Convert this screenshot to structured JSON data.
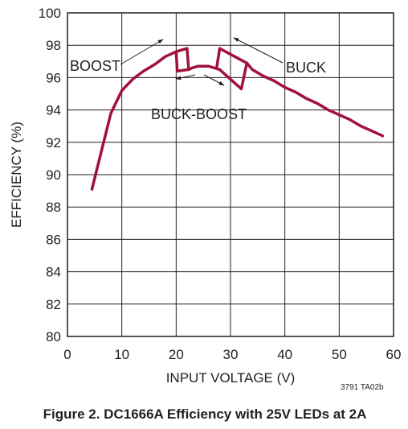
{
  "chart_data": {
    "type": "line",
    "title": "",
    "xlabel": "INPUT VOLTAGE (V)",
    "ylabel": "EFFICIENCY (%)",
    "xlim": [
      0,
      60
    ],
    "ylim": [
      80,
      100
    ],
    "x_ticks": [
      "0",
      "10",
      "20",
      "30",
      "40",
      "50",
      "60"
    ],
    "y_ticks": [
      "80",
      "82",
      "84",
      "86",
      "88",
      "90",
      "92",
      "94",
      "96",
      "98",
      "100"
    ],
    "grid": true,
    "series_color": "#a0123c",
    "series": [
      {
        "x": [
          4.5,
          6.5,
          8,
          10,
          12,
          14,
          16,
          18,
          20,
          22,
          22.3,
          23,
          24,
          26,
          27,
          28,
          30,
          32,
          33,
          34,
          36,
          38,
          40,
          42,
          44,
          46,
          48,
          50,
          52,
          54,
          56,
          58
        ],
        "y": [
          89.1,
          91.8,
          93.8,
          95.2,
          95.9,
          96.4,
          96.8,
          97.3,
          97.6,
          97.8,
          96.5,
          96.6,
          96.7,
          96.7,
          96.6,
          96.5,
          95.9,
          95.3,
          96.9,
          96.5,
          96.1,
          95.8,
          95.4,
          95.1,
          94.7,
          94.4,
          94.0,
          93.7,
          93.4,
          93.0,
          92.7,
          92.4
        ]
      },
      {
        "x": [
          20,
          20.2,
          22.3
        ],
        "y": [
          97.6,
          96.4,
          96.5
        ]
      },
      {
        "x": [
          27.5,
          28,
          33
        ],
        "y": [
          96.7,
          97.8,
          96.9
        ]
      }
    ],
    "annotations": [
      "BOOST",
      "BUCK",
      "BUCK-BOOST"
    ]
  },
  "figure_ref": "3791 TA02b",
  "caption": "Figure 2. DC1666A Efficiency with 25V LEDs at 2A"
}
